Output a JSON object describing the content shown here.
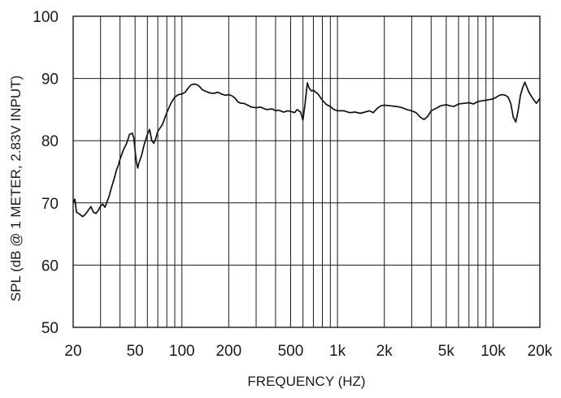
{
  "chart_data": {
    "type": "line",
    "title": "",
    "xlabel": "FREQUENCY  (HZ)",
    "ylabel": "SPL (dB @ 1 METER, 2.83V INPUT)",
    "x_scale": "log",
    "xlim": [
      20,
      20000
    ],
    "ylim": [
      50,
      100
    ],
    "grid": true,
    "x_ticks": [
      20,
      50,
      100,
      200,
      500,
      1000,
      2000,
      5000,
      10000,
      20000
    ],
    "x_tick_labels": [
      "20",
      "50",
      "100",
      "200",
      "500",
      "1k",
      "2k",
      "5k",
      "10k",
      "20k"
    ],
    "y_ticks": [
      50,
      60,
      70,
      80,
      90,
      100
    ],
    "y_tick_labels": [
      "50",
      "60",
      "70",
      "80",
      "90",
      "100"
    ],
    "series": [
      {
        "x": [
          20,
          20.5,
          21,
          22,
          23,
          24,
          25,
          26,
          27,
          28,
          29,
          30,
          31,
          32,
          33,
          34,
          35,
          36,
          37,
          38,
          39,
          40,
          42,
          44,
          45,
          46,
          48,
          49,
          50,
          51,
          52,
          53,
          55,
          57,
          60,
          62,
          64,
          66,
          67,
          68,
          70,
          75,
          80,
          85,
          90,
          95,
          100,
          105,
          110,
          115,
          120,
          125,
          130,
          135,
          140,
          150,
          160,
          170,
          180,
          190,
          200,
          210,
          220,
          230,
          240,
          250,
          260,
          280,
          300,
          320,
          350,
          380,
          400,
          420,
          450,
          480,
          500,
          530,
          550,
          580,
          600,
          620,
          640,
          650,
          660,
          680,
          700,
          750,
          800,
          850,
          900,
          950,
          1000,
          1100,
          1200,
          1300,
          1400,
          1500,
          1600,
          1700,
          1800,
          1900,
          2000,
          2200,
          2400,
          2600,
          2800,
          3000,
          3200,
          3400,
          3600,
          3800,
          4000,
          4300,
          4600,
          5000,
          5300,
          5600,
          6000,
          6500,
          7000,
          7500,
          8000,
          8500,
          9000,
          9500,
          10000,
          10500,
          11000,
          11500,
          12000,
          12500,
          13000,
          13500,
          14000,
          14500,
          15000,
          15500,
          16000,
          17000,
          18000,
          19000,
          20000
        ],
        "y": [
          70.0,
          70.6,
          68.5,
          68.2,
          67.8,
          68.2,
          68.8,
          69.4,
          68.5,
          68.3,
          68.8,
          69.5,
          69.8,
          69.3,
          70.2,
          71.0,
          72.2,
          73.2,
          74.2,
          75.3,
          76.0,
          77.0,
          78.5,
          79.5,
          80.2,
          81.0,
          81.2,
          80.5,
          78.5,
          76.5,
          75.6,
          76.5,
          77.6,
          79.2,
          81.0,
          81.8,
          80.0,
          79.6,
          80.0,
          80.4,
          81.5,
          82.6,
          84.5,
          86.0,
          87.0,
          87.4,
          87.5,
          87.8,
          88.5,
          89.0,
          89.1,
          89.0,
          88.7,
          88.2,
          88.0,
          87.7,
          87.6,
          87.8,
          87.5,
          87.3,
          87.4,
          87.2,
          86.8,
          86.2,
          86.0,
          86.0,
          85.8,
          85.4,
          85.3,
          85.4,
          85.0,
          85.1,
          84.8,
          84.9,
          84.6,
          84.8,
          84.7,
          84.5,
          85.0,
          84.6,
          83.3,
          86.0,
          89.3,
          88.8,
          88.4,
          88.0,
          88.1,
          87.5,
          86.5,
          85.8,
          85.5,
          85.0,
          84.8,
          84.8,
          84.5,
          84.6,
          84.4,
          84.6,
          84.8,
          84.5,
          85.2,
          85.6,
          85.7,
          85.6,
          85.5,
          85.3,
          85.0,
          84.8,
          84.5,
          83.8,
          83.4,
          83.9,
          84.8,
          85.2,
          85.6,
          85.8,
          85.6,
          85.5,
          85.9,
          86.0,
          86.1,
          85.9,
          86.3,
          86.4,
          86.5,
          86.6,
          86.7,
          87.0,
          87.3,
          87.4,
          87.3,
          87.0,
          86.0,
          83.8,
          83.0,
          84.8,
          87.3,
          88.5,
          89.4,
          87.8,
          86.8,
          86.0,
          86.8
        ]
      }
    ]
  }
}
